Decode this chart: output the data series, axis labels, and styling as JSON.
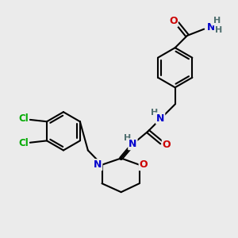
{
  "bg_color": "#ebebeb",
  "bond_color": "#000000",
  "bond_width": 1.5,
  "atom_colors": {
    "N": "#0000cc",
    "O": "#cc0000",
    "Cl": "#00aa00",
    "H": "#507070",
    "C": "#000000"
  },
  "figsize": [
    3.0,
    3.0
  ],
  "dpi": 100
}
